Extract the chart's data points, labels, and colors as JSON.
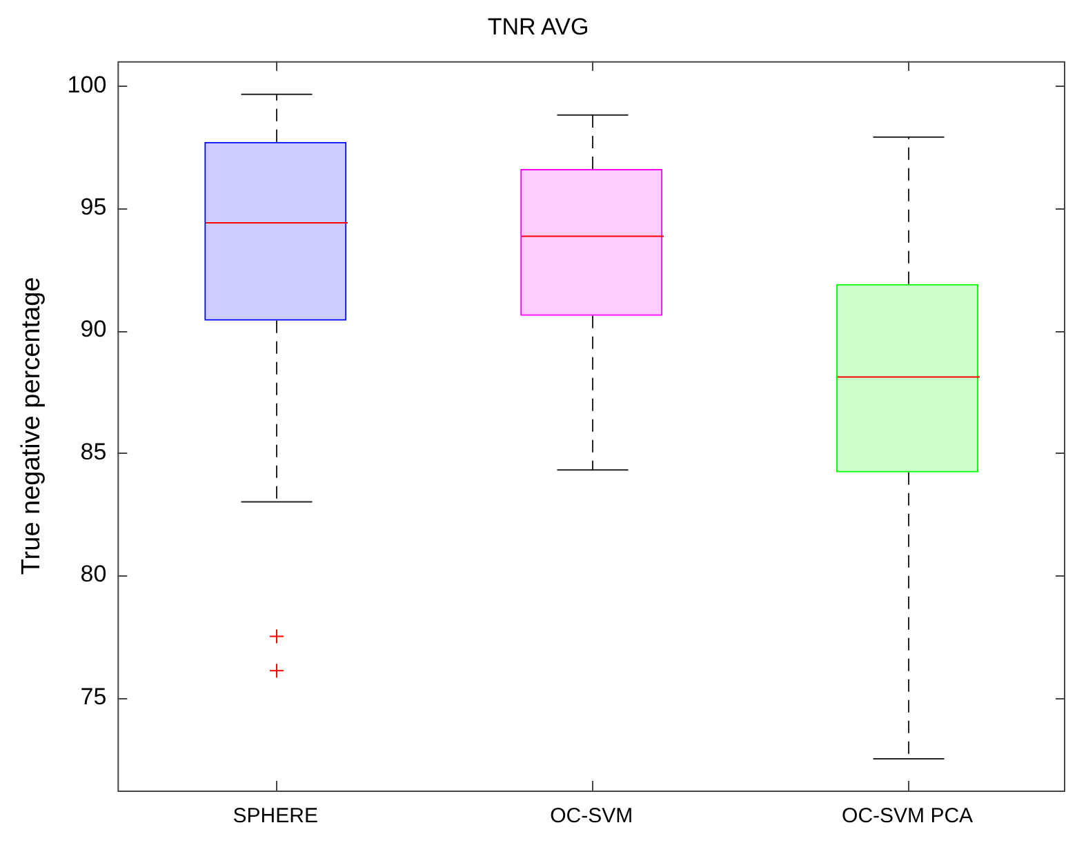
{
  "chart_data": {
    "type": "box",
    "title": "TNR AVG",
    "ylabel": "True negative percentage",
    "categories": [
      "SPHERE",
      "OC-SVM",
      "OC-SVM PCA"
    ],
    "colors": [
      "#0000ff",
      "#ff00ff",
      "#00ff00"
    ],
    "boxes": [
      {
        "low": 83.0,
        "q1": 90.4,
        "median": 94.4,
        "q3": 97.7,
        "high": 99.65,
        "outliers": [
          77.5,
          76.1
        ]
      },
      {
        "low": 84.3,
        "q1": 90.6,
        "median": 93.85,
        "q3": 96.6,
        "high": 98.8
      },
      {
        "low": 72.5,
        "q1": 84.2,
        "median": 88.1,
        "q3": 91.9,
        "high": 97.9
      }
    ],
    "ylim": [
      71.2,
      101
    ],
    "yticks": [
      75,
      80,
      85,
      90,
      95,
      100
    ],
    "grid": false,
    "legend": false
  }
}
